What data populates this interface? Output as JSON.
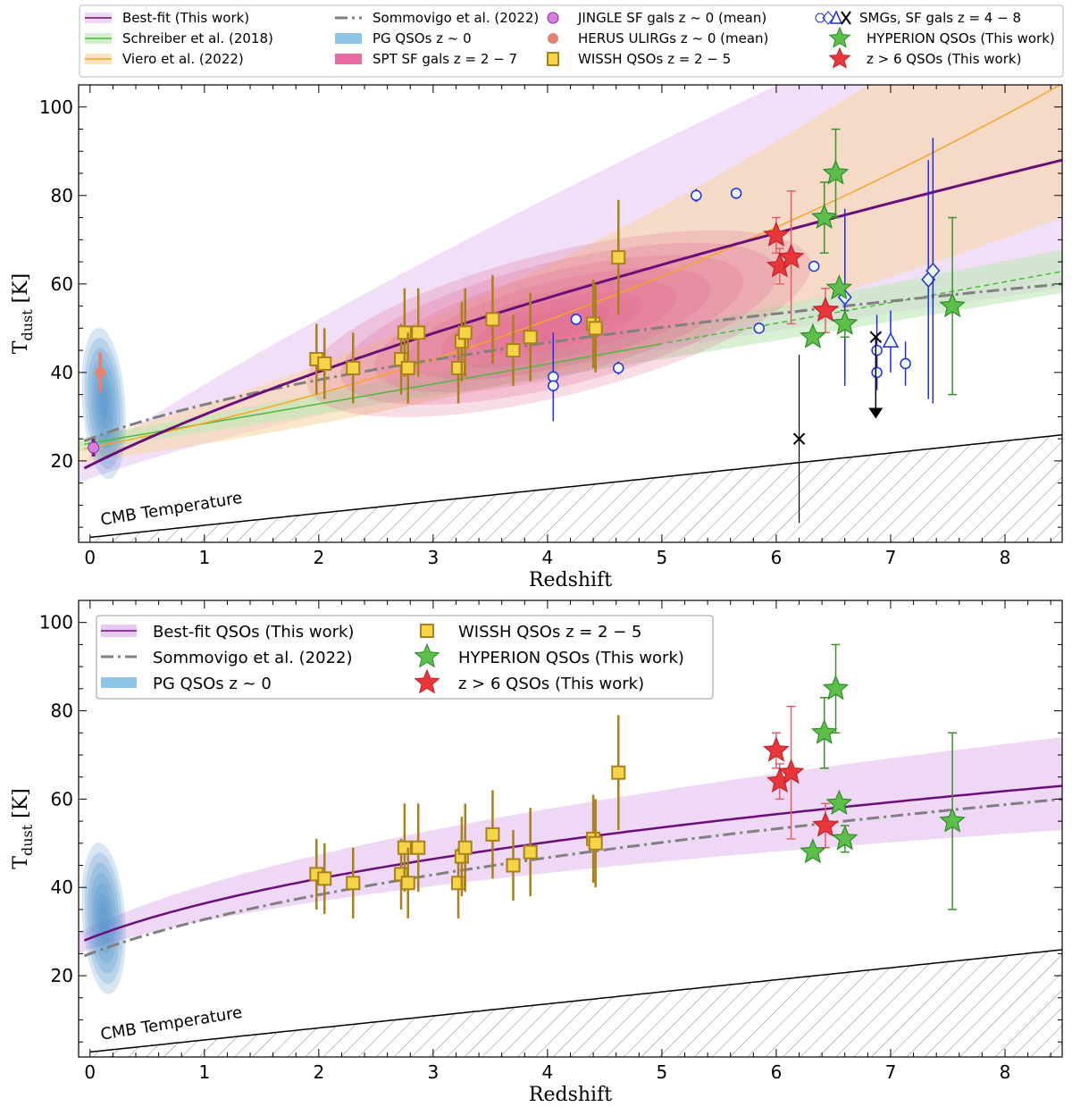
{
  "chart_data": [
    {
      "type": "scatter",
      "panel": "top",
      "xlabel": "Redshift",
      "ylabel": "T_dust [K]",
      "xlim": [
        -0.1,
        8.5
      ],
      "ylim": [
        1.6,
        105
      ],
      "xticks": [
        "0",
        "1",
        "2",
        "3",
        "4",
        "5",
        "6",
        "7",
        "8"
      ],
      "yticks": [
        "20",
        "40",
        "60",
        "80",
        "100"
      ],
      "annotation": "CMB Temperature",
      "legend_position": "top (outside)",
      "legend": [
        "Best-fit (This work)",
        "Schreiber et al. (2018)",
        "Viero et al. (2022)",
        "Sommovigo et al. (2022)",
        "PG QSOs z ~ 0",
        "SPT SF gals z = 2 − 7",
        "JINGLE SF gals z ~ 0 (mean)",
        "HERUS ULIRGs z ~ 0 (mean)",
        "WISSH QSOs z = 2 − 5",
        "SMGs, SF gals z = 4 − 8",
        "HYPERION QSOs (This work)",
        "z > 6 QSOs (This work)"
      ],
      "curves": {
        "best_fit": {
          "z0": 19,
          "z8_5": 88,
          "color": "#6a0f7a",
          "band_color": "#e7c8f2"
        },
        "schreiber": {
          "z0": 24,
          "z8_5": 63,
          "color": "#4cbb3a",
          "band_color": "#bfe8b5"
        },
        "viero": {
          "z0": 23,
          "z8_3": 102,
          "color": "#f5a623",
          "band_color": "#f9d9a6"
        },
        "sommovigo": {
          "z0": 25,
          "z8_5": 60,
          "color": "#808080"
        },
        "cmb": {
          "z0": 2.73,
          "z8_5": 25.9,
          "color": "#000000"
        }
      },
      "wissh": [
        [
          1.98,
          43,
          8
        ],
        [
          2.05,
          42,
          8
        ],
        [
          2.3,
          41,
          8
        ],
        [
          2.72,
          43,
          8
        ],
        [
          2.75,
          49,
          10
        ],
        [
          2.78,
          41,
          8
        ],
        [
          2.87,
          49,
          10
        ],
        [
          3.22,
          41,
          8
        ],
        [
          3.25,
          47,
          9
        ],
        [
          3.28,
          49,
          10
        ],
        [
          3.52,
          52,
          10
        ],
        [
          3.7,
          45,
          8
        ],
        [
          3.85,
          48,
          10
        ],
        [
          4.4,
          51,
          10
        ],
        [
          4.42,
          50,
          10
        ],
        [
          4.62,
          66,
          13
        ]
      ],
      "jingle": [
        [
          0.03,
          23,
          2
        ]
      ],
      "herus": [
        [
          0.09,
          40,
          4.5
        ]
      ],
      "z6_qsos": [
        [
          6.0,
          71,
          4
        ],
        [
          6.03,
          64,
          4
        ],
        [
          6.13,
          66,
          15
        ],
        [
          6.43,
          54,
          5
        ]
      ],
      "hyperion": [
        [
          6.32,
          48,
          0
        ],
        [
          6.42,
          75,
          8
        ],
        [
          6.52,
          85,
          10
        ],
        [
          6.55,
          59,
          0
        ],
        [
          6.6,
          51,
          3
        ],
        [
          7.54,
          55,
          20
        ]
      ],
      "smgs_circles": [
        [
          5.3,
          80,
          1.5
        ],
        [
          5.65,
          80.5,
          0
        ],
        [
          4.25,
          52,
          0
        ],
        [
          4.05,
          39,
          10
        ],
        [
          4.05,
          37,
          0
        ],
        [
          4.62,
          41,
          1.5
        ],
        [
          5.85,
          50,
          0
        ],
        [
          6.33,
          64,
          0
        ],
        [
          6.88,
          45,
          8
        ],
        [
          6.88,
          40,
          4
        ],
        [
          7.13,
          42,
          5
        ]
      ],
      "smgs_diamonds": [
        [
          6.6,
          57,
          20
        ],
        [
          7.33,
          61,
          27
        ],
        [
          7.37,
          63,
          30
        ]
      ],
      "smgs_triangles": [
        [
          7.0,
          47,
          7
        ]
      ],
      "smgs_crosses": [
        [
          6.2,
          25,
          19
        ]
      ],
      "smgs_upper_limits": [
        [
          6.87,
          48,
          32
        ]
      ]
    },
    {
      "type": "scatter",
      "panel": "bottom",
      "xlabel": "Redshift",
      "ylabel": "T_dust [K]",
      "xlim": [
        -0.1,
        8.5
      ],
      "ylim": [
        1.6,
        105
      ],
      "xticks": [
        "0",
        "1",
        "2",
        "3",
        "4",
        "5",
        "6",
        "7",
        "8"
      ],
      "yticks": [
        "20",
        "40",
        "60",
        "80",
        "100"
      ],
      "annotation": "CMB Temperature",
      "legend_position": "upper-left",
      "legend": [
        "Best-fit QSOs (This work)",
        "Sommovigo et al. (2022)",
        "PG QSOs z ~ 0",
        "WISSH QSOs z = 2 − 5",
        "HYPERION QSOs (This work)",
        "z > 6 QSOs (This work)"
      ],
      "curves": {
        "best_fit_qsos": {
          "z0": 28.5,
          "z8_5": 63,
          "color": "#6a0f7a",
          "band_color": "#e7c8f2"
        },
        "sommovigo": {
          "z0": 25,
          "z8_5": 60,
          "color": "#808080"
        },
        "cmb": {
          "z0": 2.73,
          "z8_5": 25.9,
          "color": "#000000"
        }
      }
    }
  ],
  "colors": {
    "wissh_fill": "#f5d547",
    "wissh_edge": "#a8801c",
    "z6_star": "#e8363a",
    "hyperion_star": "#5cbf4a",
    "smg": "#1f2ee0",
    "pg": "#4a8fc9",
    "spt": "#e0608f",
    "jingle": "#d97de6",
    "herus": "#e8826e"
  }
}
